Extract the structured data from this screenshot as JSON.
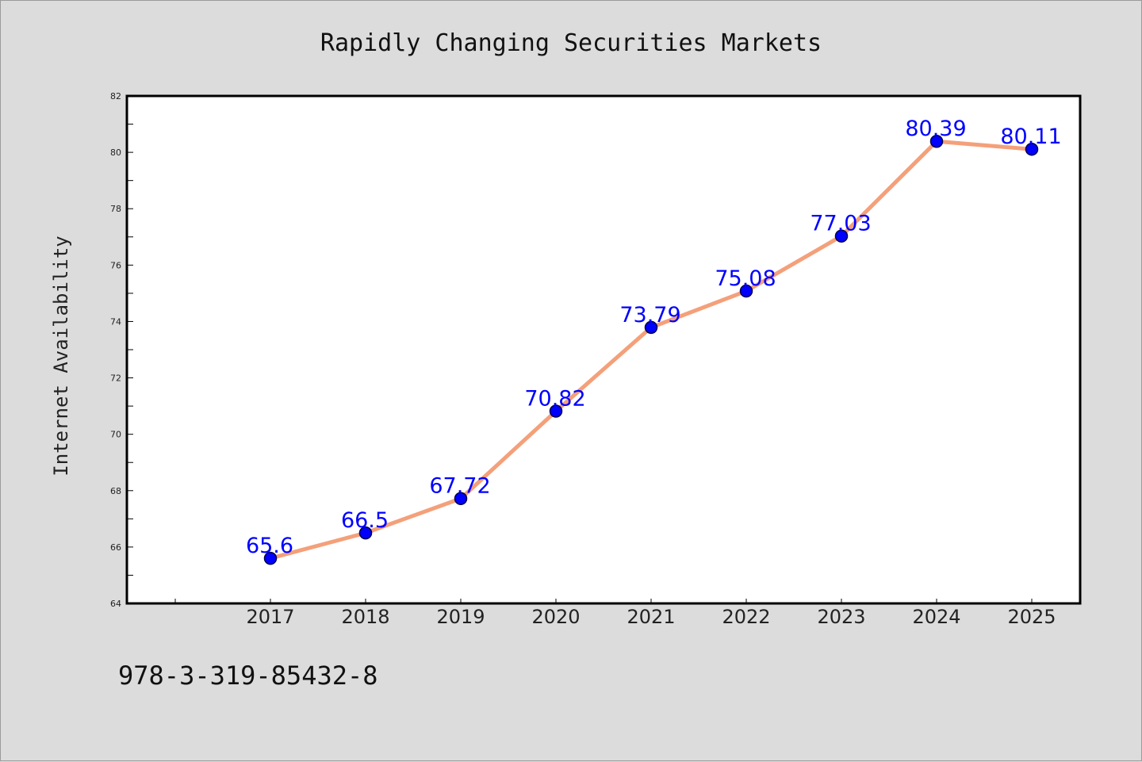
{
  "chart_data": {
    "type": "line",
    "title": "Rapidly Changing Securities Markets",
    "xlabel": "",
    "ylabel": "Internet Availability",
    "categories": [
      "2017",
      "2018",
      "2019",
      "2020",
      "2021",
      "2022",
      "2023",
      "2024",
      "2025"
    ],
    "series": [
      {
        "values": [
          65.6,
          66.5,
          67.72,
          70.82,
          73.79,
          75.08,
          77.03,
          80.39,
          80.11
        ],
        "labels": [
          "65.6",
          "66.5",
          "67.72",
          "70.82",
          "73.79",
          "75.08",
          "77.03",
          "80.39",
          "80.11"
        ]
      }
    ],
    "ylim": [
      64,
      82
    ],
    "y_ticks": [
      "64",
      "66",
      "68",
      "70",
      "72",
      "74",
      "76",
      "78",
      "80",
      "82"
    ],
    "grid": false,
    "legend": "none",
    "colors": {
      "line": "#f4a07a",
      "marker": "#0000ff",
      "label": "#0000ff",
      "background": "#dcdcdc",
      "plot_background": "#ffffff"
    }
  },
  "footer": {
    "isbn": "978-3-319-85432-8"
  }
}
